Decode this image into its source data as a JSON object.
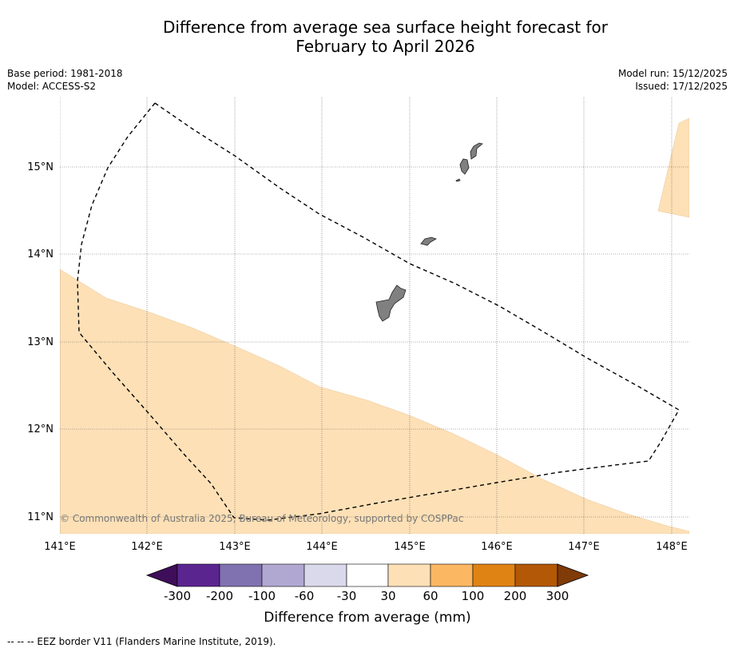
{
  "title": {
    "line1": "Difference from average sea surface height forecast for",
    "line2": "February to April 2026"
  },
  "meta": {
    "base_period": "Base period: 1981-2018",
    "model": "Model: ACCESS-S2",
    "model_run": "Model run: 15/12/2025",
    "issued": "Issued: 17/12/2025"
  },
  "map": {
    "lon_ticks": [
      "141°E",
      "142°E",
      "143°E",
      "144°E",
      "145°E",
      "146°E",
      "147°E",
      "148°E"
    ],
    "lat_ticks": [
      "15°N",
      "14°N",
      "13°N",
      "12°N",
      "11°N"
    ],
    "copyright": "© Commonwealth of Australia 2025, Bureau of Meteorology, supported by COSPPac",
    "colors": {
      "land": "#808080",
      "anomaly_30_60": "#fde0b6",
      "eez_line": "#000000"
    }
  },
  "colorbar": {
    "ticks": [
      "-300",
      "-200",
      "-100",
      "-60",
      "-30",
      "30",
      "60",
      "100",
      "200",
      "300"
    ],
    "colors": [
      "#3f0e5a",
      "#5b2590",
      "#8072b0",
      "#b1a8d2",
      "#dad9ec",
      "#ffffff",
      "#fde0b6",
      "#fbb761",
      "#e08315",
      "#b35806",
      "#7f3b08"
    ],
    "label": "Difference from average (mm)"
  },
  "footnote": "--  --  -- EEZ border V11 (Flanders Marine Institute, 2019)."
}
